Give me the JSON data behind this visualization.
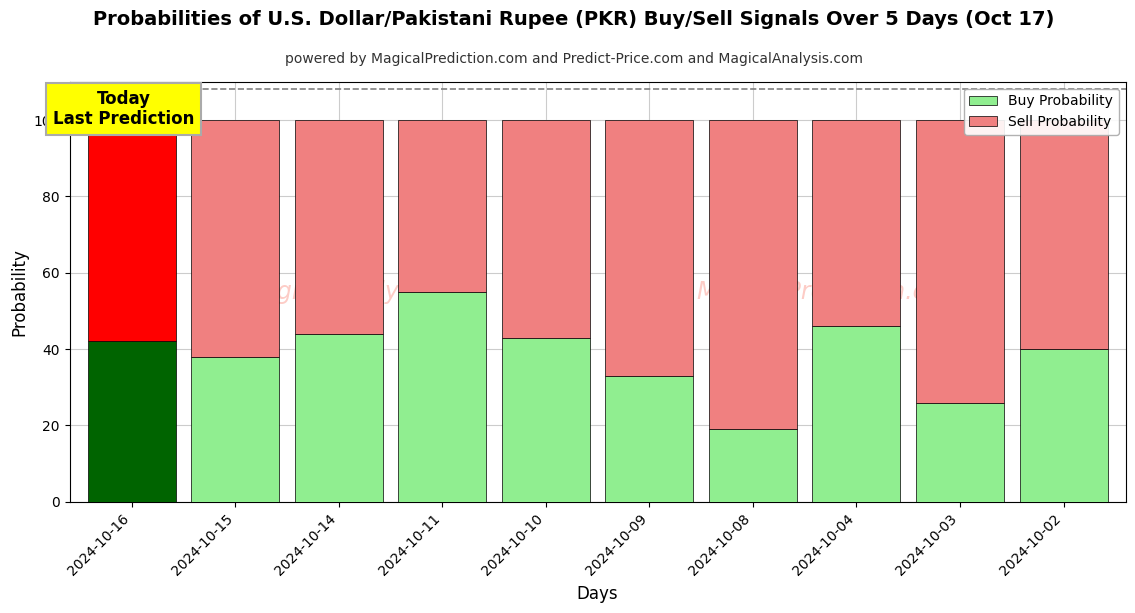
{
  "title": "Probabilities of U.S. Dollar/Pakistani Rupee (PKR) Buy/Sell Signals Over 5 Days (Oct 17)",
  "subtitle": "powered by MagicalPrediction.com and Predict-Price.com and MagicalAnalysis.com",
  "xlabel": "Days",
  "ylabel": "Probability",
  "dates": [
    "2024-10-16",
    "2024-10-15",
    "2024-10-14",
    "2024-10-11",
    "2024-10-10",
    "2024-10-09",
    "2024-10-08",
    "2024-10-04",
    "2024-10-03",
    "2024-10-02"
  ],
  "buy_values": [
    42,
    38,
    44,
    55,
    43,
    33,
    19,
    46,
    26,
    40
  ],
  "sell_values": [
    58,
    62,
    56,
    45,
    57,
    67,
    81,
    54,
    74,
    60
  ],
  "buy_color_today": "#006400",
  "sell_color_today": "#ff0000",
  "buy_color_rest": "#90ee90",
  "sell_color_rest": "#f08080",
  "bar_width": 0.85,
  "ylim": [
    0,
    110
  ],
  "yticks": [
    0,
    20,
    40,
    60,
    80,
    100
  ],
  "dashed_line_y": 108,
  "annotation_text": "Today\nLast Prediction",
  "annotation_facecolor": "#ffff00",
  "annotation_edgecolor": "#aaaaaa",
  "watermark_line1": "MagicalAnalysis.com",
  "watermark_line2": "MagicalPrediction.com",
  "legend_buy_label": "Buy Probability",
  "legend_sell_label": "Sell Probability",
  "background_color": "#ffffff",
  "grid_color": "#cccccc",
  "title_fontsize": 14,
  "subtitle_fontsize": 10
}
